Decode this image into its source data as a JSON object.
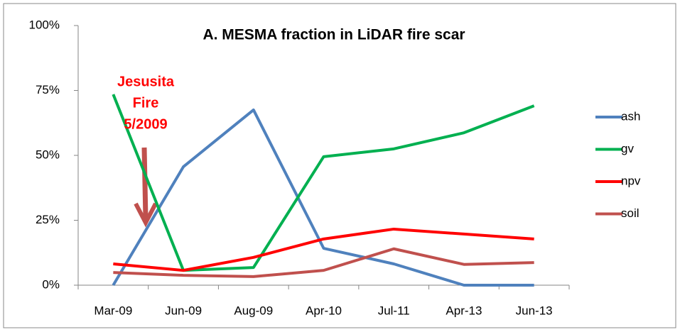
{
  "chart_data": {
    "type": "line",
    "title": "A. MESMA fraction in LiDAR fire scar",
    "categories": [
      "Mar-09",
      "Jun-09",
      "Aug-09",
      "Apr-10",
      "Jul-11",
      "Apr-13",
      "Jun-13"
    ],
    "series": [
      {
        "name": "ash",
        "color": "#4f81bd",
        "values": [
          0,
          45.6,
          67.5,
          14.2,
          8.2,
          0,
          0
        ]
      },
      {
        "name": "gv",
        "color": "#00b050",
        "values": [
          73.5,
          5.7,
          6.8,
          49.5,
          52.5,
          58.7,
          69.1
        ]
      },
      {
        "name": "npv",
        "color": "#ff0000",
        "values": [
          8.2,
          5.7,
          10.7,
          17.8,
          21.6,
          19.7,
          17.8
        ]
      },
      {
        "name": "soil",
        "color": "#c0504d",
        "values": [
          4.9,
          3.8,
          3.3,
          5.7,
          14,
          8,
          8.7
        ]
      }
    ],
    "ylim": [
      0,
      100
    ],
    "yticks": [
      {
        "value": 0,
        "label": "0%"
      },
      {
        "value": 25,
        "label": "25%"
      },
      {
        "value": 50,
        "label": "50%"
      },
      {
        "value": 75,
        "label": "75%"
      },
      {
        "value": 100,
        "label": "100%"
      }
    ],
    "annotation": [
      "Jesusita",
      "Fire",
      "5/2009"
    ],
    "legend": "right"
  }
}
